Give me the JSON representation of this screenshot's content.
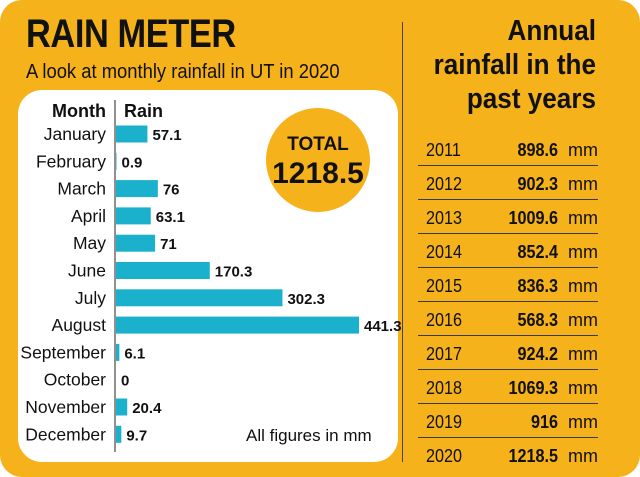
{
  "header": {
    "title": "RAIN METER",
    "subtitle": "A look at monthly rainfall in UT in 2020"
  },
  "right_panel": {
    "title_lines": [
      "Annual",
      "rainfall in the",
      "past years"
    ],
    "unit": "mm",
    "rows": [
      {
        "year": "2011",
        "value": "898.6"
      },
      {
        "year": "2012",
        "value": "902.3"
      },
      {
        "year": "2013",
        "value": "1009.6"
      },
      {
        "year": "2014",
        "value": "852.4"
      },
      {
        "year": "2015",
        "value": "836.3"
      },
      {
        "year": "2016",
        "value": "568.3"
      },
      {
        "year": "2017",
        "value": "924.2"
      },
      {
        "year": "2018",
        "value": "1069.3"
      },
      {
        "year": "2019",
        "value": "916"
      },
      {
        "year": "2020",
        "value": "1218.5"
      }
    ]
  },
  "total": {
    "label": "TOTAL",
    "value": "1218.5"
  },
  "note": "All figures in mm",
  "colors": {
    "background": "#f6b21a",
    "bar": "#1bb1cc",
    "circle": "#f6b21a"
  },
  "chart_data": {
    "type": "bar",
    "orientation": "horizontal",
    "category_header": "Month",
    "value_header": "Rain",
    "categories": [
      "January",
      "February",
      "March",
      "April",
      "May",
      "June",
      "July",
      "August",
      "September",
      "October",
      "November",
      "December"
    ],
    "values": [
      57.1,
      0.9,
      76,
      63.1,
      71,
      170.3,
      302.3,
      441.3,
      6.1,
      0,
      20.4,
      9.7
    ],
    "value_labels": [
      "57.1",
      "0.9",
      "76",
      "63.1",
      "71",
      "170.3",
      "302.3",
      "441.3",
      "6.1",
      "0",
      "20.4",
      "9.7"
    ]
  }
}
